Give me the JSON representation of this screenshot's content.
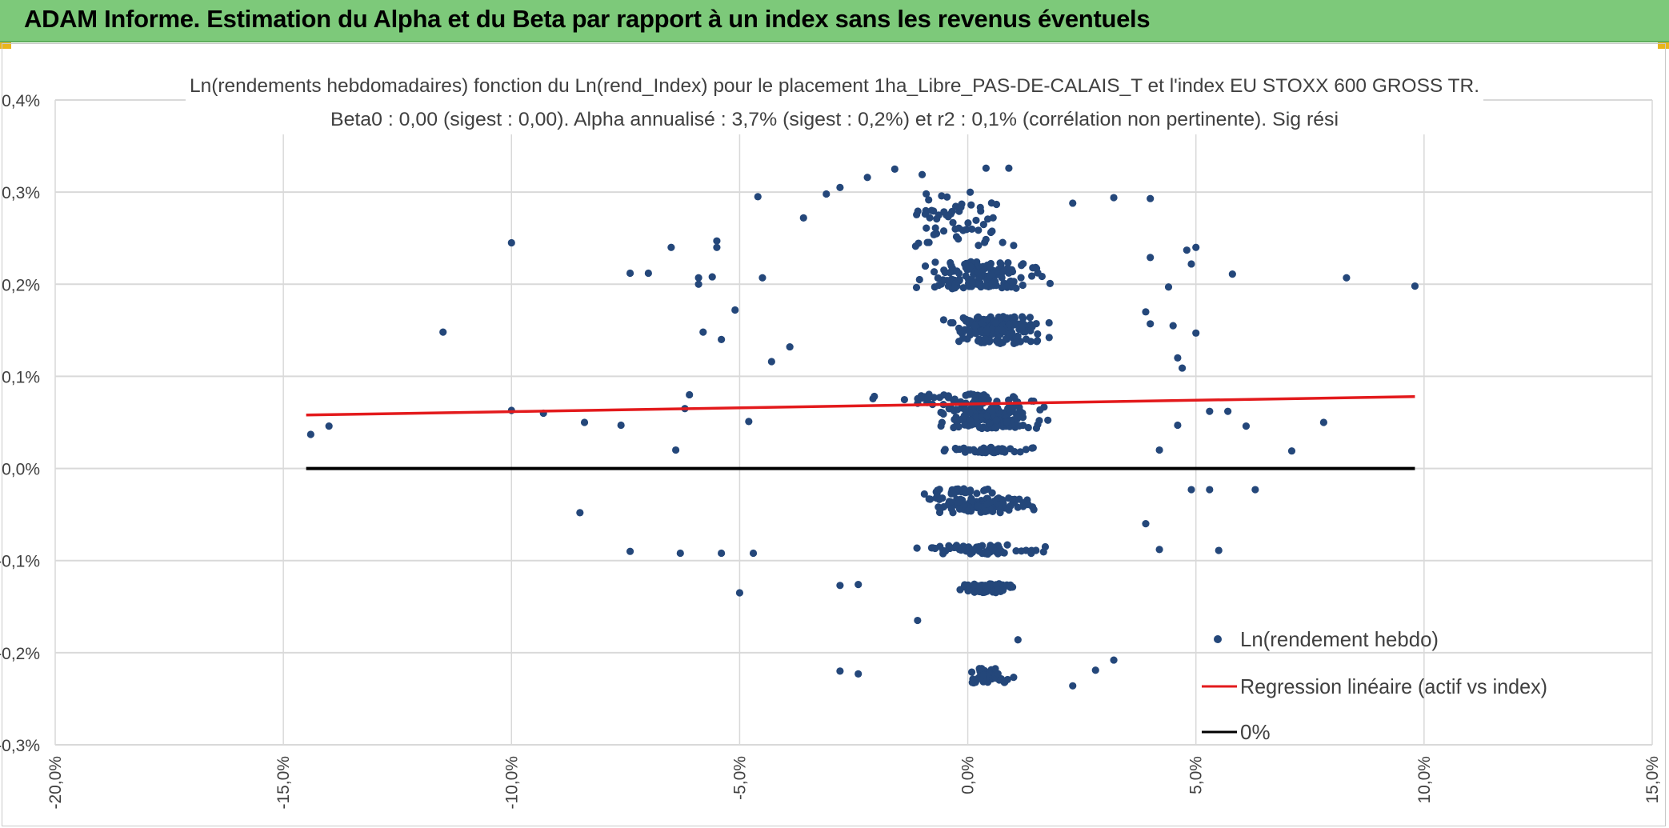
{
  "header": {
    "title": "ADAM Informe. Estimation du Alpha et du Beta par rapport à un index sans les revenus éventuels"
  },
  "colors": {
    "banner": "#7dc97a",
    "points": "#24477a",
    "regression": "#e31a1c",
    "zero_line": "#000000",
    "grid": "#d9d9d9"
  },
  "chart_data": {
    "type": "scatter",
    "title": "Ln(rendements hebdomadaires) fonction du Ln(rend_Index) pour le placement 1ha_Libre_PAS-DE-CALAIS_T et l'index EU STOXX 600 GROSS TR.",
    "subtitle": "Beta0 : 0,00 (sigest : 0,00). Alpha annualisé : 3,7% (sigest : 0,2%) et r2 : 0,1% (corrélation non pertinente). Sig rési",
    "xlabel": "",
    "ylabel": "",
    "xlim": [
      -20,
      15
    ],
    "ylim": [
      -0.3,
      0.4
    ],
    "x_ticks": [
      -20,
      -15,
      -10,
      -5,
      0,
      5,
      10,
      15
    ],
    "x_tick_labels": [
      "-20,0%",
      "-15,0%",
      "-10,0%",
      "-5,0%",
      "0,0%",
      "5,0%",
      "10,0%",
      "15,0%"
    ],
    "y_ticks": [
      -0.3,
      -0.2,
      -0.1,
      0.0,
      0.1,
      0.2,
      0.3,
      0.4
    ],
    "y_tick_labels": [
      "-0,3%",
      "-0,2%",
      "-0,1%",
      "0,0%",
      "0,1%",
      "0,2%",
      "0,3%",
      "0,4%"
    ],
    "grid": true,
    "legend_position": "bottom-right",
    "legend": [
      {
        "name": "Ln(rendement hebdo)",
        "kind": "marker"
      },
      {
        "name": "Regression linéaire (actif vs index)",
        "kind": "line"
      },
      {
        "name": "0%",
        "kind": "line"
      }
    ],
    "regression": {
      "x": [
        -14.5,
        9.8
      ],
      "y": [
        0.058,
        0.078
      ]
    },
    "zero_line": {
      "x": [
        -14.5,
        9.8
      ],
      "y": [
        0.0,
        0.0
      ]
    },
    "clusters": [
      {
        "y": 0.15,
        "center_x": 0.6,
        "spread_x": 1.8,
        "jitter_y": 0.015,
        "count": 170
      },
      {
        "y": 0.055,
        "center_x": 0.5,
        "spread_x": 2.0,
        "jitter_y": 0.012,
        "count": 160
      },
      {
        "y": 0.21,
        "center_x": 0.3,
        "spread_x": 2.2,
        "jitter_y": 0.015,
        "count": 140
      },
      {
        "y": 0.27,
        "center_x": -0.2,
        "spread_x": 2.0,
        "jitter_y": 0.03,
        "count": 60
      },
      {
        "y": 0.075,
        "center_x": 0.0,
        "spread_x": 2.5,
        "jitter_y": 0.006,
        "count": 60
      },
      {
        "y": 0.02,
        "center_x": 0.5,
        "spread_x": 1.8,
        "jitter_y": 0.003,
        "count": 45
      },
      {
        "y": -0.04,
        "center_x": 0.3,
        "spread_x": 1.8,
        "jitter_y": 0.008,
        "count": 120
      },
      {
        "y": -0.025,
        "center_x": -0.2,
        "spread_x": 1.2,
        "jitter_y": 0.003,
        "count": 30
      },
      {
        "y": -0.088,
        "center_x": 0.3,
        "spread_x": 2.0,
        "jitter_y": 0.005,
        "count": 60
      },
      {
        "y": -0.13,
        "center_x": 0.4,
        "spread_x": 0.9,
        "jitter_y": 0.005,
        "count": 75
      },
      {
        "y": -0.225,
        "center_x": 0.4,
        "spread_x": 1.0,
        "jitter_y": 0.008,
        "count": 45
      }
    ],
    "outliers": [
      {
        "x": -14.4,
        "y": 0.037
      },
      {
        "x": -14.0,
        "y": 0.046
      },
      {
        "x": -11.5,
        "y": 0.148
      },
      {
        "x": -10.0,
        "y": 0.245
      },
      {
        "x": -10.0,
        "y": 0.063
      },
      {
        "x": -9.3,
        "y": 0.06
      },
      {
        "x": -8.5,
        "y": -0.048
      },
      {
        "x": -8.4,
        "y": 0.05
      },
      {
        "x": -7.6,
        "y": 0.047
      },
      {
        "x": -7.4,
        "y": 0.212
      },
      {
        "x": -7.4,
        "y": -0.09
      },
      {
        "x": -7.0,
        "y": 0.212
      },
      {
        "x": -6.5,
        "y": 0.24
      },
      {
        "x": -6.4,
        "y": 0.02
      },
      {
        "x": -6.3,
        "y": -0.092
      },
      {
        "x": -6.2,
        "y": 0.065
      },
      {
        "x": -6.1,
        "y": 0.08
      },
      {
        "x": -5.9,
        "y": 0.2
      },
      {
        "x": -5.9,
        "y": 0.207
      },
      {
        "x": -5.8,
        "y": 0.148
      },
      {
        "x": -5.6,
        "y": 0.208
      },
      {
        "x": -5.5,
        "y": 0.247
      },
      {
        "x": -5.5,
        "y": 0.24
      },
      {
        "x": -5.4,
        "y": 0.14
      },
      {
        "x": -5.4,
        "y": -0.092
      },
      {
        "x": -5.1,
        "y": 0.172
      },
      {
        "x": -5.0,
        "y": -0.135
      },
      {
        "x": -4.8,
        "y": 0.051
      },
      {
        "x": -4.7,
        "y": -0.092
      },
      {
        "x": -4.3,
        "y": 0.116
      },
      {
        "x": -4.5,
        "y": 0.207
      },
      {
        "x": -4.6,
        "y": 0.295
      },
      {
        "x": -3.6,
        "y": 0.272
      },
      {
        "x": -3.9,
        "y": 0.132
      },
      {
        "x": -2.8,
        "y": 0.305
      },
      {
        "x": -3.1,
        "y": 0.298
      },
      {
        "x": -2.2,
        "y": 0.316
      },
      {
        "x": -1.6,
        "y": 0.325
      },
      {
        "x": -1.0,
        "y": 0.319
      },
      {
        "x": 0.4,
        "y": 0.326
      },
      {
        "x": 0.9,
        "y": 0.326
      },
      {
        "x": -2.8,
        "y": -0.22
      },
      {
        "x": -2.4,
        "y": -0.223
      },
      {
        "x": -2.8,
        "y": -0.127
      },
      {
        "x": -2.4,
        "y": -0.126
      },
      {
        "x": -1.1,
        "y": -0.165
      },
      {
        "x": 1.1,
        "y": -0.186
      },
      {
        "x": 3.2,
        "y": -0.208
      },
      {
        "x": 2.8,
        "y": -0.219
      },
      {
        "x": 2.3,
        "y": -0.236
      },
      {
        "x": 4.0,
        "y": 0.293
      },
      {
        "x": 3.2,
        "y": 0.294
      },
      {
        "x": 2.3,
        "y": 0.288
      },
      {
        "x": 5.0,
        "y": 0.24
      },
      {
        "x": 4.8,
        "y": 0.237
      },
      {
        "x": 4.0,
        "y": 0.229
      },
      {
        "x": 4.4,
        "y": 0.197
      },
      {
        "x": 4.9,
        "y": 0.222
      },
      {
        "x": 5.8,
        "y": 0.211
      },
      {
        "x": 3.9,
        "y": 0.17
      },
      {
        "x": 4.0,
        "y": 0.157
      },
      {
        "x": 4.5,
        "y": 0.155
      },
      {
        "x": 4.6,
        "y": 0.12
      },
      {
        "x": 4.7,
        "y": 0.109
      },
      {
        "x": 5.0,
        "y": 0.147
      },
      {
        "x": 5.3,
        "y": 0.062
      },
      {
        "x": 5.7,
        "y": 0.062
      },
      {
        "x": 6.1,
        "y": 0.046
      },
      {
        "x": 4.6,
        "y": 0.047
      },
      {
        "x": 4.2,
        "y": 0.02
      },
      {
        "x": 4.9,
        "y": -0.023
      },
      {
        "x": 5.3,
        "y": -0.023
      },
      {
        "x": 5.5,
        "y": -0.089
      },
      {
        "x": 4.2,
        "y": -0.088
      },
      {
        "x": 3.9,
        "y": -0.06
      },
      {
        "x": 6.3,
        "y": -0.023
      },
      {
        "x": 7.1,
        "y": 0.019
      },
      {
        "x": 7.8,
        "y": 0.05
      },
      {
        "x": 8.3,
        "y": 0.207
      },
      {
        "x": 9.8,
        "y": 0.198
      }
    ]
  }
}
